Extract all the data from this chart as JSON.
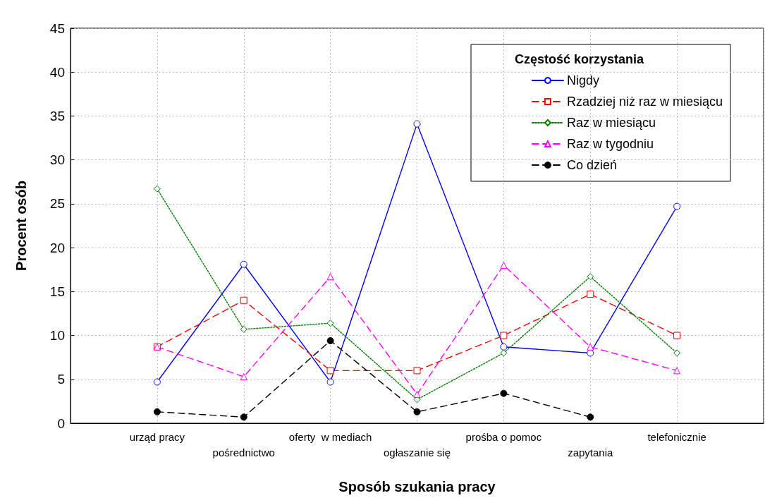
{
  "chart_data": {
    "type": "line",
    "xlabel": "Sposób szukania pracy",
    "ylabel": "Procent osób",
    "legend_title": "Częstość korzystania",
    "categories": [
      "urząd pracy",
      "pośrednictwo",
      "oferty  w mediach",
      "ogłaszanie się",
      "prośba o pomoc",
      "zapytania",
      "telefonicznie"
    ],
    "ylim": [
      0,
      45
    ],
    "yticks": [
      0,
      5,
      10,
      15,
      20,
      25,
      30,
      35,
      40,
      45
    ],
    "grid": true,
    "legend": "top right",
    "series": [
      {
        "name": "Nigdy",
        "color": "#0000ff",
        "marker": "circle",
        "line_style": "solid",
        "values": [
          4.7,
          18.1,
          4.7,
          34.1,
          8.7,
          8.0,
          24.7
        ]
      },
      {
        "name": "Rzadziej niż raz w miesiącu",
        "color": "#ff0000",
        "marker": "square",
        "line_style": "dashed",
        "values": [
          8.7,
          14.0,
          6.0,
          6.0,
          10.0,
          14.7,
          10.0
        ]
      },
      {
        "name": "Raz w miesiącu",
        "color": "#008000",
        "marker": "diamond",
        "line_style": "dotted",
        "values": [
          26.7,
          10.7,
          11.4,
          2.7,
          8.0,
          16.7,
          8.0
        ]
      },
      {
        "name": "Raz w tygodniu",
        "color": "#ff00ff",
        "marker": "triangle",
        "line_style": "dashed",
        "values": [
          8.7,
          5.3,
          16.7,
          3.3,
          18.0,
          8.7,
          6.0
        ]
      },
      {
        "name": "Co dzień",
        "color": "#000000",
        "marker": "circle",
        "line_style": "dashed",
        "values": [
          1.3,
          0.7,
          9.4,
          1.3,
          3.4,
          0.7,
          null
        ]
      }
    ]
  }
}
